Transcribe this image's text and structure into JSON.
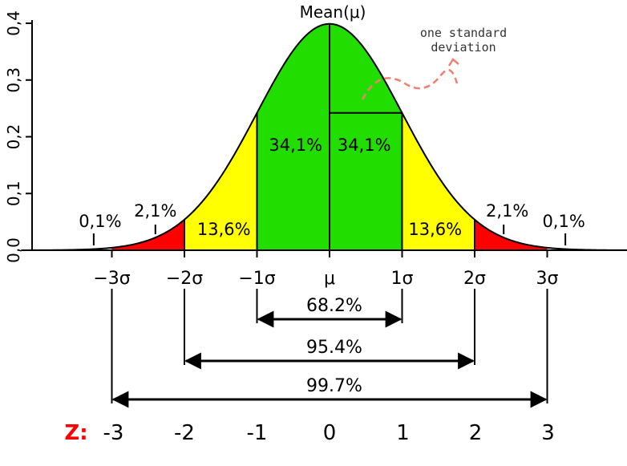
{
  "title": "Mean(μ)",
  "annotation": "one standard deviation",
  "annotation_lines": [
    "one standard",
    "deviation"
  ],
  "y_axis": {
    "ticks": [
      {
        "value": 0.0,
        "label": "0,0"
      },
      {
        "value": 0.1,
        "label": "0,1"
      },
      {
        "value": 0.2,
        "label": "0,2"
      },
      {
        "value": 0.3,
        "label": "0,3"
      },
      {
        "value": 0.4,
        "label": "0,4"
      }
    ]
  },
  "sigma_labels": [
    {
      "z": -3,
      "label": "−3σ"
    },
    {
      "z": -2,
      "label": "−2σ"
    },
    {
      "z": -1,
      "label": "−1σ"
    },
    {
      "z": 0,
      "label": "μ"
    },
    {
      "z": 1,
      "label": "1σ"
    },
    {
      "z": 2,
      "label": "2σ"
    },
    {
      "z": 3,
      "label": "3σ"
    }
  ],
  "regions": [
    {
      "from": -2,
      "to": -1,
      "label": "13,6%",
      "color": "#ffff00"
    },
    {
      "from": -1,
      "to": 0,
      "label": "34,1%",
      "color": "#22dd00"
    },
    {
      "from": 0,
      "to": 1,
      "label": "34,1%",
      "color": "#22dd00"
    },
    {
      "from": 1,
      "to": 2,
      "label": "13,6%",
      "color": "#ffff00"
    },
    {
      "from": -3,
      "to": -2,
      "label": "2,1%",
      "color": "#ff0000"
    },
    {
      "from": 2,
      "to": 3,
      "label": "2,1%",
      "color": "#ff0000"
    }
  ],
  "tail_labels": [
    {
      "z": -3.25,
      "label": "0,1%"
    },
    {
      "z": 3.25,
      "label": "0,1%"
    }
  ],
  "spans": [
    {
      "from": -1,
      "to": 1,
      "label": "68.2%"
    },
    {
      "from": -2,
      "to": 2,
      "label": "95.4%"
    },
    {
      "from": -3,
      "to": 3,
      "label": "99.7%"
    }
  ],
  "z_row": {
    "label": "Z:",
    "label_color": "#ff0000",
    "values": [
      "-3",
      "-2",
      "-1",
      "0",
      "1",
      "2",
      "3"
    ]
  },
  "colors": {
    "curve": "#000000",
    "arrow": "#000000",
    "annotation_arrow": "#f08070"
  }
}
